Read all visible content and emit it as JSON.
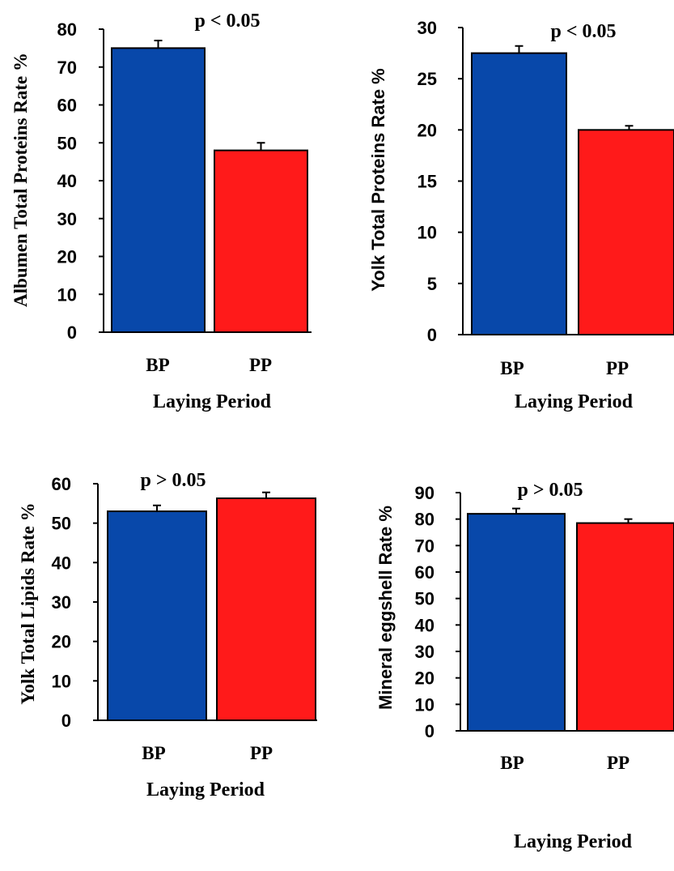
{
  "chart_data": [
    {
      "type": "bar",
      "ylabel": "Albumen Total Proteins Rate %",
      "xlabel": "Laying Period",
      "categories": [
        "BP",
        "PP"
      ],
      "values": [
        75,
        48
      ],
      "errors": [
        2,
        2
      ],
      "ylim": [
        0,
        80
      ],
      "yticks": [
        0,
        10,
        20,
        30,
        40,
        50,
        60,
        70,
        80
      ],
      "annotation": "p < 0.05",
      "colors": [
        "#0848aa",
        "#ff1a1a"
      ]
    },
    {
      "type": "bar",
      "ylabel": "Yolk Total Proteins Rate %",
      "xlabel": "Laying Period",
      "categories": [
        "BP",
        "PP"
      ],
      "values": [
        27.5,
        20
      ],
      "errors": [
        0.7,
        0.4
      ],
      "ylim": [
        0,
        30
      ],
      "yticks": [
        0,
        5,
        10,
        15,
        20,
        25,
        30
      ],
      "annotation": "p < 0.05",
      "colors": [
        "#0848aa",
        "#ff1a1a"
      ]
    },
    {
      "type": "bar",
      "ylabel": "Yolk Total Lipids Rate %",
      "xlabel": "Laying Period",
      "categories": [
        "BP",
        "PP"
      ],
      "values": [
        53,
        56.3
      ],
      "errors": [
        1.5,
        1.5
      ],
      "ylim": [
        0,
        60
      ],
      "yticks": [
        0,
        10,
        20,
        30,
        40,
        50,
        60
      ],
      "annotation": "p > 0.05",
      "colors": [
        "#0848aa",
        "#ff1a1a"
      ]
    },
    {
      "type": "bar",
      "ylabel": "Mineral eggshell Rate %",
      "xlabel": "Laying Period",
      "categories": [
        "BP",
        "PP"
      ],
      "values": [
        82,
        78.5
      ],
      "errors": [
        2,
        1.5
      ],
      "ylim": [
        0,
        90
      ],
      "yticks": [
        0,
        10,
        20,
        30,
        40,
        50,
        60,
        70,
        80,
        90
      ],
      "annotation": "p > 0.05",
      "colors": [
        "#0848aa",
        "#ff1a1a"
      ]
    }
  ]
}
